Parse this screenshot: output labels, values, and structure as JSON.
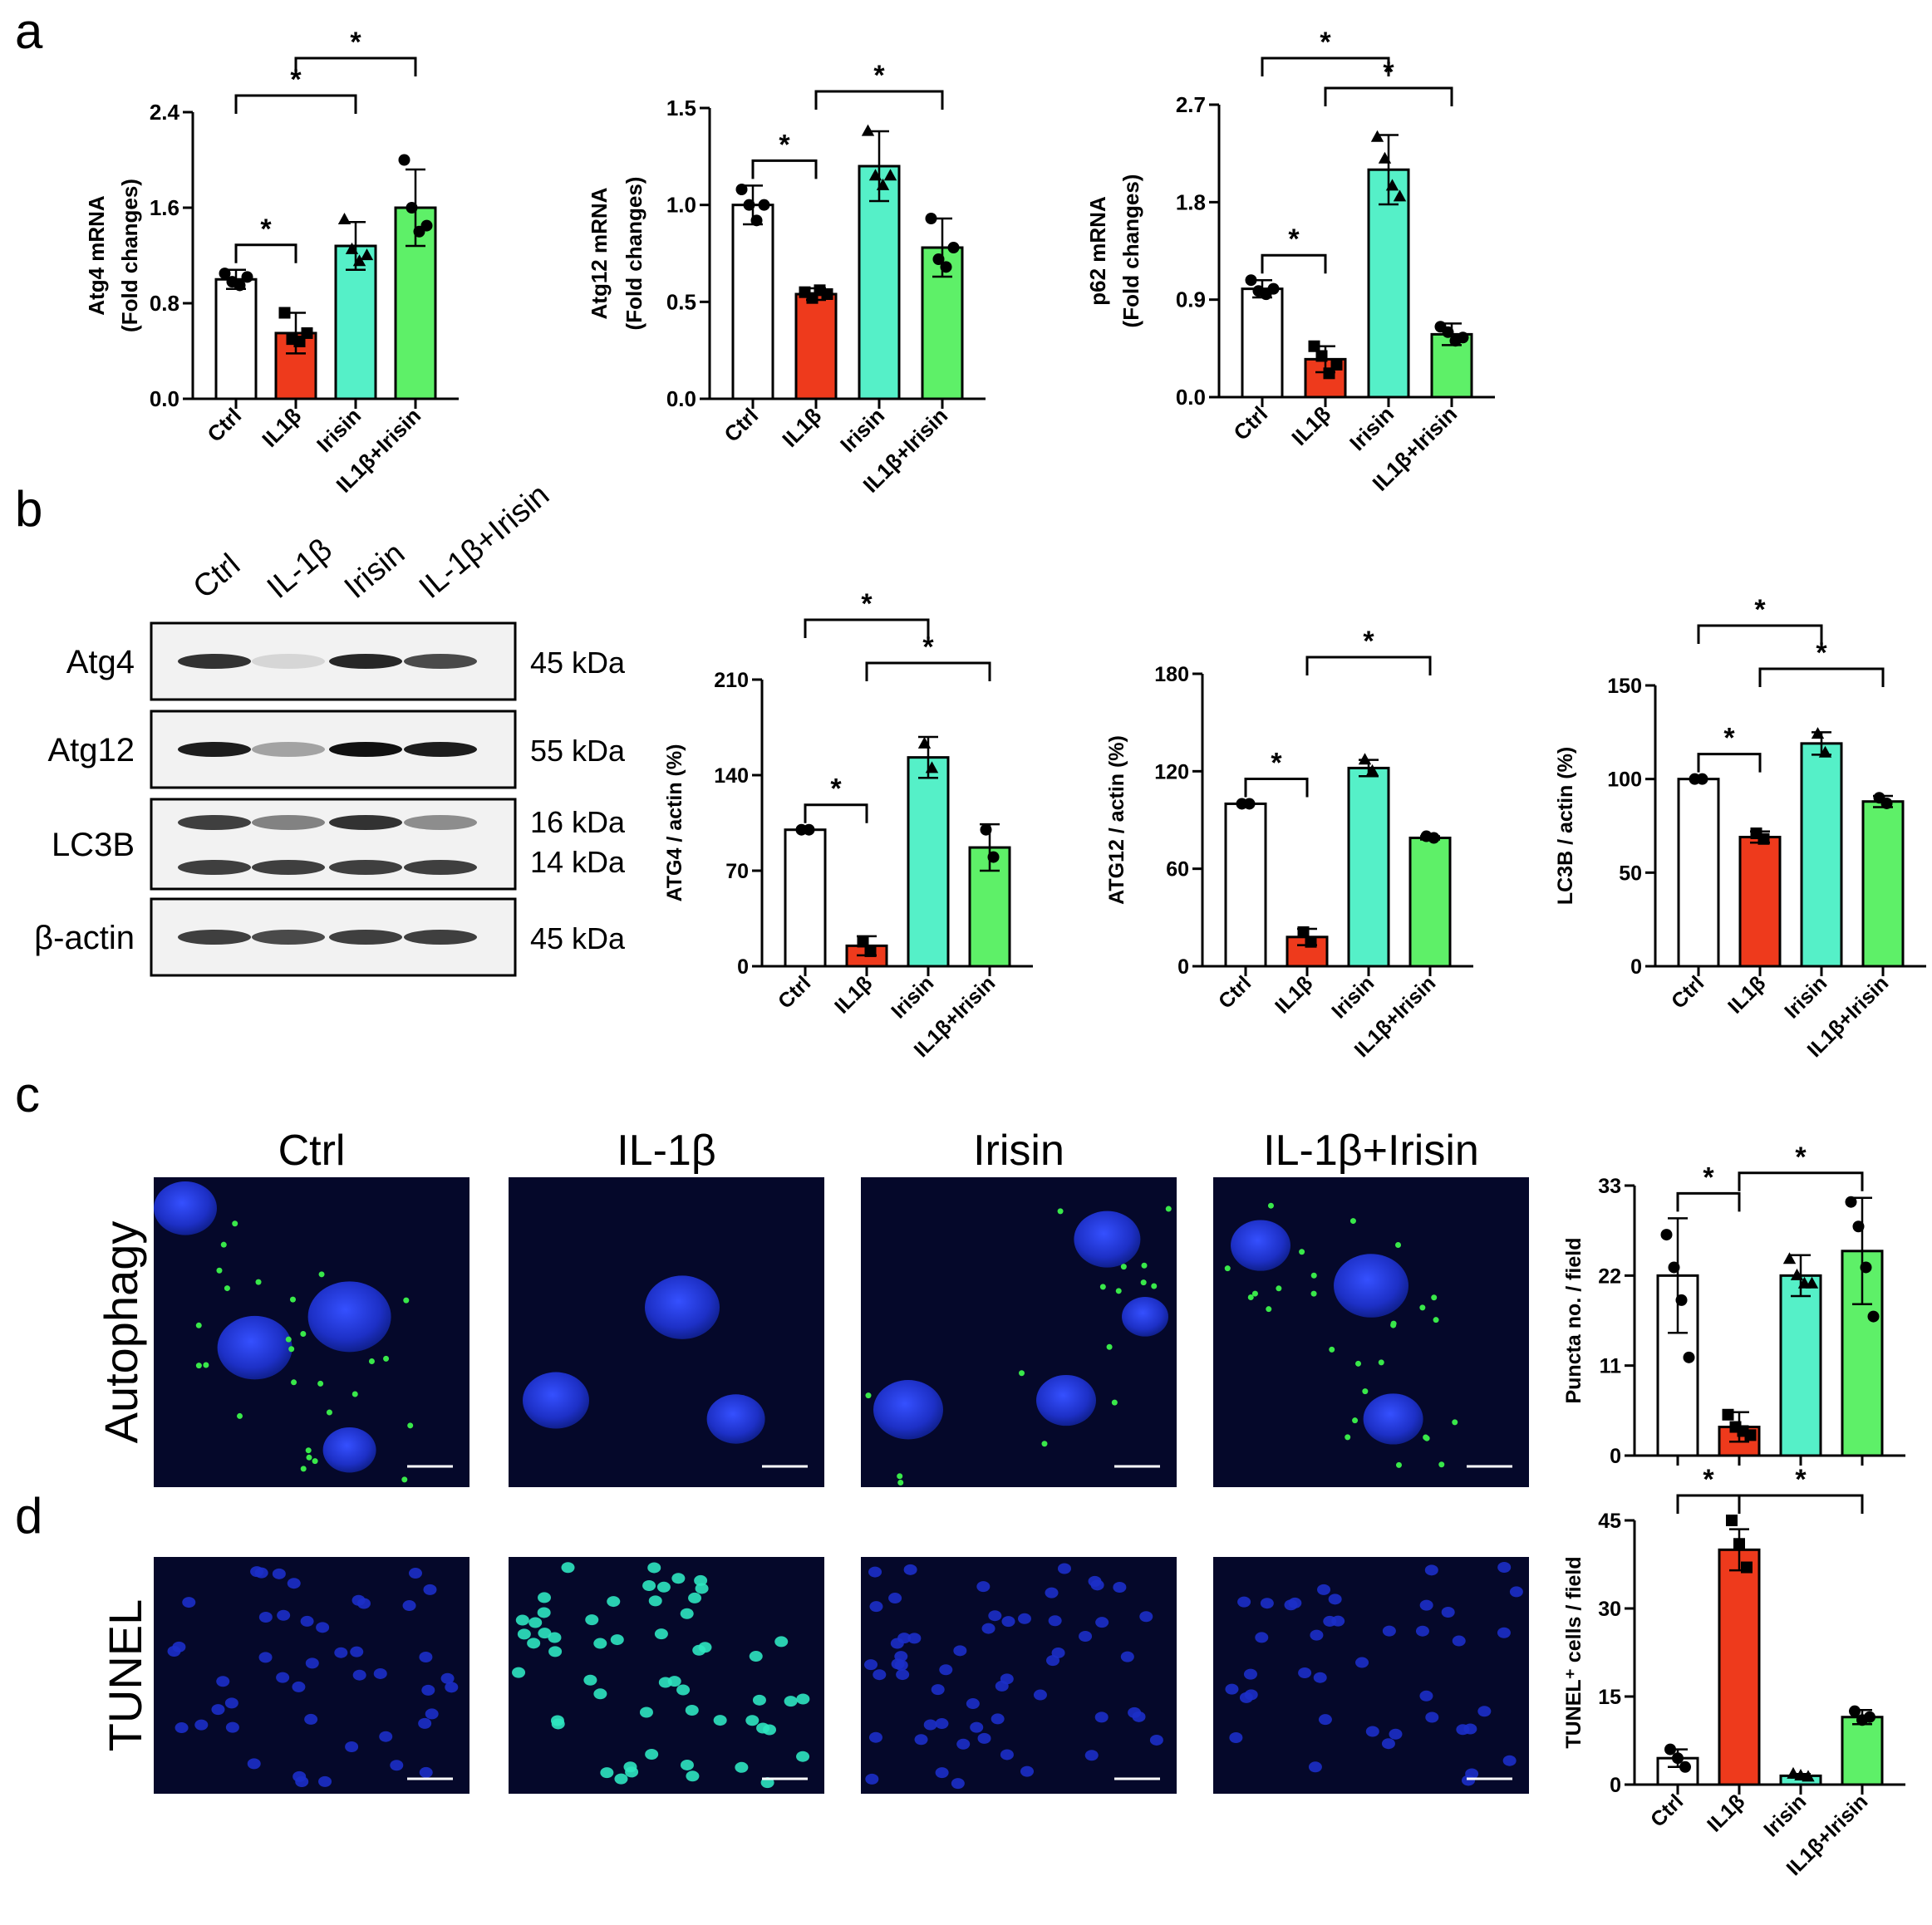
{
  "panels": {
    "a": "a",
    "b": "b",
    "c": "c",
    "d": "d"
  },
  "colors": {
    "ctrl": "#ffffff",
    "il1b": "#ee3a1c",
    "irisin": "#55f0c8",
    "combo": "#5ef068",
    "micro_bg": "#05082a",
    "nucleus": "#1c2fc8",
    "puncta": "#39e84a",
    "tunel": "#2fe6c0"
  },
  "western": {
    "lanes": [
      "Ctrl",
      "IL-1β",
      "Irisin",
      "IL-1β+Irisin"
    ],
    "rows": [
      {
        "name": "Atg4",
        "kda": [
          "45 kDa"
        ],
        "intensity": [
          0.85,
          0.12,
          0.9,
          0.75
        ]
      },
      {
        "name": "Atg12",
        "kda": [
          "55 kDa"
        ],
        "intensity": [
          0.95,
          0.35,
          1.0,
          0.95
        ]
      },
      {
        "name": "LC3B",
        "kda": [
          "16 kDa",
          "14 kDa"
        ],
        "intensity": [
          0.8,
          0.5,
          0.85,
          0.45
        ]
      },
      {
        "name": "β-actin",
        "kda": [
          "45 kDa"
        ],
        "intensity": [
          0.8,
          0.75,
          0.8,
          0.8
        ]
      }
    ]
  },
  "micro": {
    "conditions": [
      "Ctrl",
      "IL-1β",
      "Irisin",
      "IL-1β+Irisin"
    ],
    "row_labels": [
      "Autophagy",
      "TUNEL"
    ]
  },
  "chart_data": [
    {
      "id": "atg4-mrna",
      "type": "bar",
      "categories": [
        "Ctrl",
        "IL1β",
        "Irisin",
        "IL1β+Irisin"
      ],
      "values": [
        1.0,
        0.55,
        1.28,
        1.6
      ],
      "errors": [
        0.08,
        0.17,
        0.2,
        0.32
      ],
      "points": [
        [
          1.05,
          0.98,
          0.95,
          1.02
        ],
        [
          0.72,
          0.5,
          0.48,
          0.55
        ],
        [
          1.5,
          1.25,
          1.15,
          1.2
        ],
        [
          2.0,
          1.6,
          1.4,
          1.45
        ]
      ],
      "ylabel": [
        "Atg4 mRNA",
        "(Fold changes)"
      ],
      "ylim": [
        0,
        2.4
      ],
      "yticks": [
        "0.0",
        "0.8",
        "1.6",
        "2.4"
      ],
      "sig": [
        {
          "from": 1,
          "to": 2,
          "level": 0,
          "label": "*"
        },
        {
          "from": 1,
          "to": 3,
          "level": 1,
          "label": "*"
        },
        {
          "from": 2,
          "to": 4,
          "level": 2,
          "label": "*"
        }
      ]
    },
    {
      "id": "atg12-mrna",
      "type": "bar",
      "categories": [
        "Ctrl",
        "IL1β",
        "Irisin",
        "IL1β+Irisin"
      ],
      "values": [
        1.0,
        0.54,
        1.2,
        0.78
      ],
      "errors": [
        0.1,
        0.03,
        0.18,
        0.15
      ],
      "points": [
        [
          1.08,
          1.0,
          0.92,
          1.0
        ],
        [
          0.55,
          0.52,
          0.56,
          0.54
        ],
        [
          1.38,
          1.15,
          1.1,
          1.15
        ],
        [
          0.93,
          0.72,
          0.68,
          0.78
        ]
      ],
      "ylabel": [
        "Atg12 mRNA",
        "(Fold changes)"
      ],
      "ylim": [
        0,
        1.5
      ],
      "yticks": [
        "0.0",
        "0.5",
        "1.0",
        "1.5"
      ],
      "sig": [
        {
          "from": 1,
          "to": 2,
          "level": 0,
          "label": "*"
        },
        {
          "from": 2,
          "to": 4,
          "level": 1,
          "label": "*"
        }
      ]
    },
    {
      "id": "p62-mrna",
      "type": "bar",
      "categories": [
        "Ctrl",
        "IL1β",
        "Irisin",
        "IL1β+Irisin"
      ],
      "values": [
        1.0,
        0.35,
        2.1,
        0.58
      ],
      "errors": [
        0.08,
        0.12,
        0.32,
        0.1
      ],
      "points": [
        [
          1.08,
          0.98,
          0.95,
          1.0
        ],
        [
          0.47,
          0.38,
          0.22,
          0.3
        ],
        [
          2.4,
          2.2,
          1.95,
          1.85
        ],
        [
          0.65,
          0.6,
          0.52,
          0.55
        ]
      ],
      "ylabel": [
        "p62 mRNA",
        "(Fold changes)"
      ],
      "ylim": [
        0,
        2.7
      ],
      "yticks": [
        "0.0",
        "0.9",
        "1.8",
        "2.7"
      ],
      "sig": [
        {
          "from": 1,
          "to": 2,
          "level": 0,
          "label": "*"
        },
        {
          "from": 2,
          "to": 4,
          "level": 1,
          "label": "*"
        },
        {
          "from": 1,
          "to": 3,
          "level": 2,
          "label": "*"
        }
      ]
    },
    {
      "id": "atg4-actin",
      "type": "bar",
      "categories": [
        "Ctrl",
        "IL1β",
        "Irisin",
        "IL1β+Irisin"
      ],
      "values": [
        100,
        15,
        153,
        87
      ],
      "errors": [
        0,
        7,
        15,
        17
      ],
      "points": [
        [
          100,
          100
        ],
        [
          18,
          11
        ],
        [
          163,
          145
        ],
        [
          100,
          80
        ]
      ],
      "ylabel": [
        "ATG4 / actin (%)"
      ],
      "ylim": [
        0,
        210
      ],
      "yticks": [
        "0",
        "70",
        "140",
        "210"
      ],
      "sig": [
        {
          "from": 1,
          "to": 2,
          "level": 0,
          "label": "*"
        },
        {
          "from": 2,
          "to": 4,
          "level": 1,
          "label": "*"
        },
        {
          "from": 1,
          "to": 3,
          "level": 2,
          "label": "*"
        }
      ]
    },
    {
      "id": "atg12-actin",
      "type": "bar",
      "categories": [
        "Ctrl",
        "IL1β",
        "Irisin",
        "IL1β+Irisin"
      ],
      "values": [
        100,
        18,
        122,
        79
      ],
      "errors": [
        0,
        5,
        5,
        1
      ],
      "points": [
        [
          100,
          100
        ],
        [
          21,
          15
        ],
        [
          127,
          120
        ],
        [
          80,
          79
        ]
      ],
      "ylabel": [
        "ATG12 / actin (%)"
      ],
      "ylim": [
        0,
        180
      ],
      "yticks": [
        "0",
        "60",
        "120",
        "180"
      ],
      "sig": [
        {
          "from": 1,
          "to": 2,
          "level": 0,
          "label": "*"
        },
        {
          "from": 2,
          "to": 4,
          "level": 1,
          "label": "*"
        }
      ]
    },
    {
      "id": "lc3b-actin",
      "type": "bar",
      "categories": [
        "Ctrl",
        "IL1β",
        "Irisin",
        "IL1β+Irisin"
      ],
      "values": [
        100,
        69,
        119,
        88
      ],
      "errors": [
        0,
        3,
        6,
        3
      ],
      "points": [
        [
          100,
          100
        ],
        [
          71,
          68
        ],
        [
          124,
          114
        ],
        [
          90,
          87
        ]
      ],
      "ylabel": [
        "LC3B / actin (%)"
      ],
      "ylim": [
        0,
        150
      ],
      "yticks": [
        "0",
        "50",
        "100",
        "150"
      ],
      "sig": [
        {
          "from": 1,
          "to": 2,
          "level": 0,
          "label": "*"
        },
        {
          "from": 2,
          "to": 4,
          "level": 1,
          "label": "*"
        },
        {
          "from": 1,
          "to": 3,
          "level": 2,
          "label": "*"
        }
      ]
    },
    {
      "id": "puncta",
      "type": "bar",
      "categories": [
        "Ctrl",
        "IL1β",
        "Irisin",
        "IL1β+Irisin"
      ],
      "values": [
        22,
        3.5,
        22,
        25
      ],
      "errors": [
        7,
        1.8,
        2.5,
        6.5
      ],
      "points": [
        [
          27,
          23,
          19,
          12
        ],
        [
          5,
          3.5,
          3,
          2.5
        ],
        [
          24,
          22,
          21,
          21
        ],
        [
          31,
          28,
          23,
          17
        ]
      ],
      "ylabel": [
        "Puncta no. / field"
      ],
      "ylim": [
        0,
        33
      ],
      "yticks": [
        "0",
        "11",
        "22",
        "33"
      ],
      "sig": [
        {
          "from": 1,
          "to": 2,
          "level": 0,
          "label": "*"
        },
        {
          "from": 2,
          "to": 4,
          "level": 0,
          "label": "*"
        }
      ],
      "show_xlabels": false
    },
    {
      "id": "tunel",
      "type": "bar",
      "categories": [
        "Ctrl",
        "IL1β",
        "Irisin",
        "IL1β+Irisin"
      ],
      "values": [
        4.5,
        40,
        1.5,
        11.5
      ],
      "errors": [
        1.5,
        3.5,
        0.3,
        1.2
      ],
      "points": [
        [
          6,
          4.5,
          3
        ],
        [
          45,
          41,
          37
        ],
        [
          1.8,
          1.5,
          1.3
        ],
        [
          12.5,
          11,
          11.5
        ]
      ],
      "ylabel": [
        "TUNEL⁺ cells / field"
      ],
      "ylim": [
        0,
        45
      ],
      "yticks": [
        "0",
        "15",
        "30",
        "45"
      ],
      "sig": [
        {
          "from": 1,
          "to": 2,
          "level": 0,
          "label": "*"
        },
        {
          "from": 2,
          "to": 4,
          "level": 0,
          "label": "*"
        }
      ],
      "show_xlabels": true
    }
  ]
}
